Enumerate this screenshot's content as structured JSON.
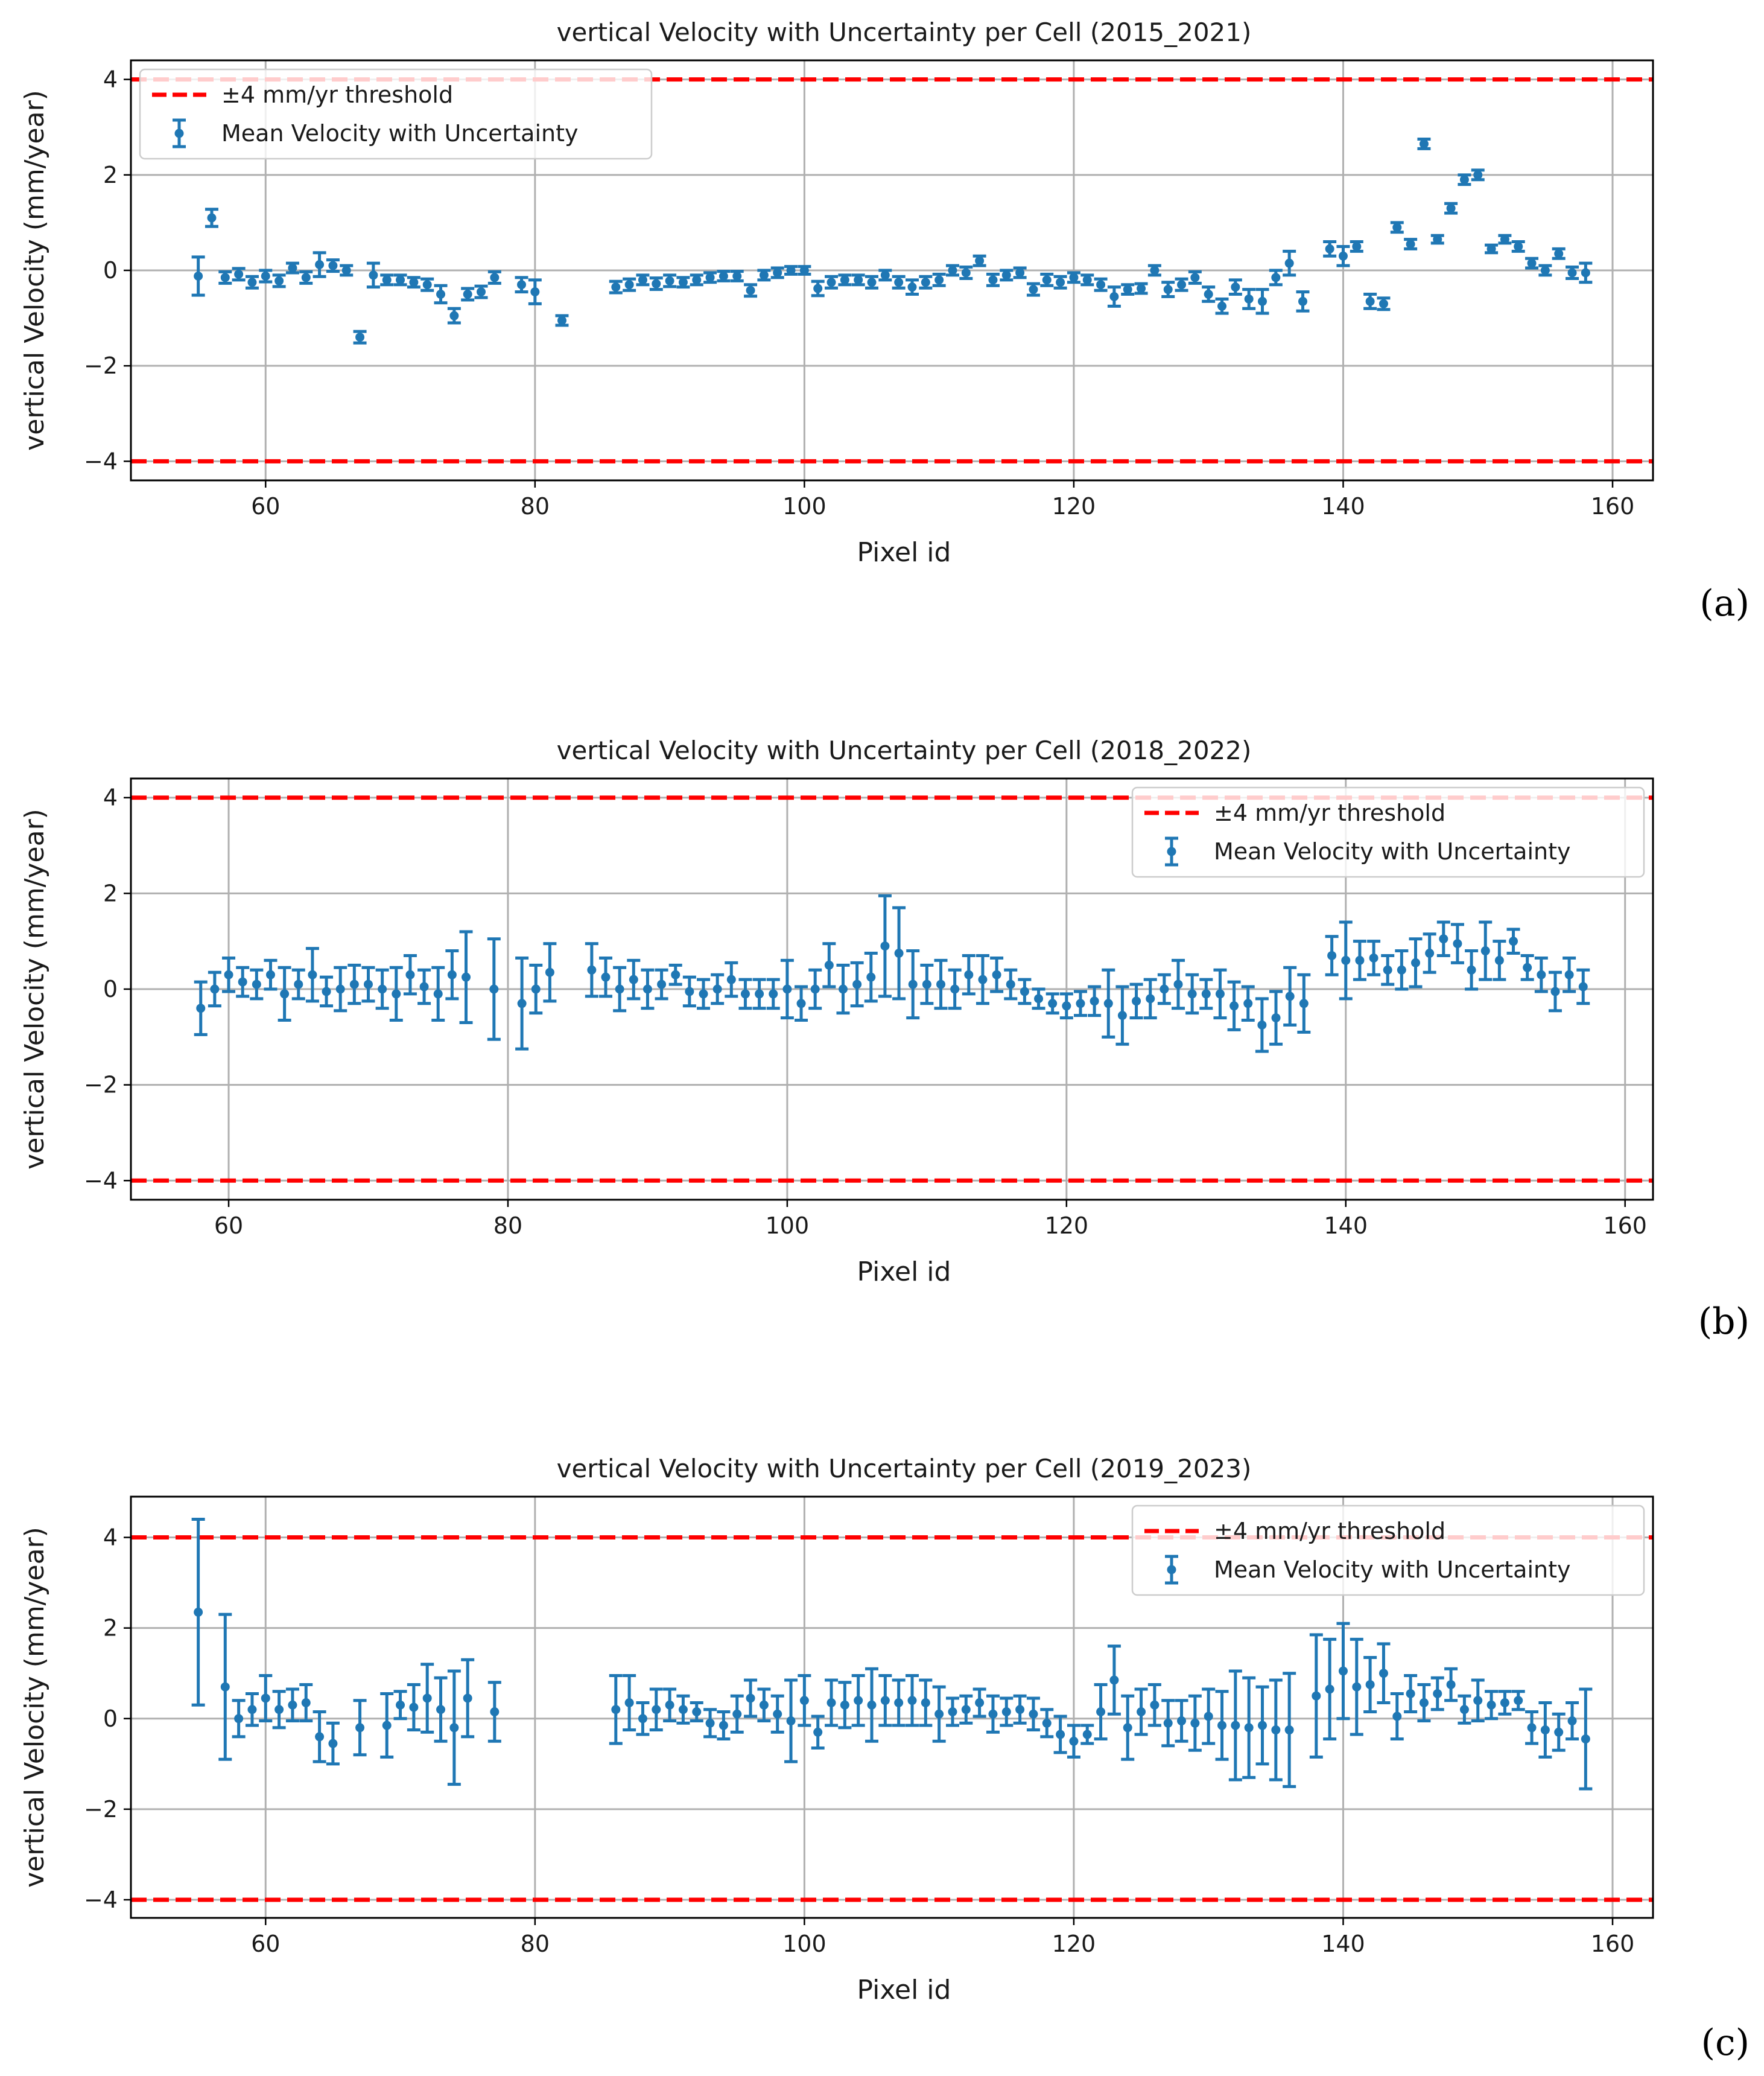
{
  "colors": {
    "series": "#1f77b4",
    "threshold": "#ff0000",
    "grid": "#b0b0b0",
    "axis": "#000000"
  },
  "chart_data": [
    {
      "type": "scatter",
      "panel_label": "(a)",
      "title": "vertical Velocity with Uncertainty per Cell (2015_2021)",
      "xlabel": "Pixel id",
      "ylabel": "vertical Velocity (mm/year)",
      "xlim": [
        50,
        163
      ],
      "ylim": [
        -4.4,
        4.4
      ],
      "xticks": [
        60,
        80,
        100,
        120,
        140,
        160
      ],
      "yticks": [
        -4,
        -2,
        0,
        2,
        4
      ],
      "grid": true,
      "legend_position": "top-left",
      "legend": {
        "threshold": "±4 mm/yr threshold",
        "series": "Mean Velocity with Uncertainty"
      },
      "thresholds": [
        4,
        -4
      ],
      "series": [
        {
          "name": "Mean Velocity with Uncertainty",
          "x": [
            55,
            56,
            57,
            58,
            59,
            60,
            61,
            62,
            63,
            64,
            65,
            66,
            67,
            68,
            69,
            70,
            71,
            72,
            73,
            74,
            75,
            76,
            77,
            79,
            80,
            82,
            86,
            87,
            88,
            89,
            90,
            91,
            92,
            93,
            94,
            95,
            96,
            97,
            98,
            99,
            100,
            101,
            102,
            103,
            104,
            105,
            106,
            107,
            108,
            109,
            110,
            111,
            112,
            113,
            114,
            115,
            116,
            117,
            118,
            119,
            120,
            121,
            122,
            123,
            124,
            125,
            126,
            127,
            128,
            129,
            130,
            131,
            132,
            133,
            134,
            135,
            136,
            137,
            139,
            140,
            141,
            142,
            143,
            144,
            145,
            146,
            147,
            148,
            149,
            150,
            151,
            152,
            153,
            154,
            155,
            156,
            157,
            158
          ],
          "y": [
            -0.12,
            1.1,
            -0.15,
            -0.08,
            -0.25,
            -0.12,
            -0.22,
            0.05,
            -0.15,
            0.12,
            0.1,
            0.0,
            -1.4,
            -0.1,
            -0.2,
            -0.2,
            -0.25,
            -0.3,
            -0.5,
            -0.95,
            -0.5,
            -0.45,
            -0.15,
            -0.3,
            -0.45,
            -1.05,
            -0.35,
            -0.3,
            -0.2,
            -0.28,
            -0.22,
            -0.25,
            -0.2,
            -0.15,
            -0.12,
            -0.12,
            -0.42,
            -0.1,
            -0.05,
            0.0,
            0.0,
            -0.38,
            -0.25,
            -0.2,
            -0.2,
            -0.25,
            -0.1,
            -0.25,
            -0.35,
            -0.25,
            -0.2,
            0.0,
            -0.05,
            0.2,
            -0.2,
            -0.1,
            -0.05,
            -0.4,
            -0.2,
            -0.25,
            -0.15,
            -0.2,
            -0.3,
            -0.55,
            -0.4,
            -0.38,
            0.0,
            -0.4,
            -0.3,
            -0.15,
            -0.5,
            -0.75,
            -0.35,
            -0.6,
            -0.65,
            -0.15,
            0.15,
            -0.65,
            0.45,
            0.3,
            0.5,
            -0.65,
            -0.7,
            0.9,
            0.55,
            2.65,
            0.65,
            1.3,
            1.9,
            2.0,
            0.45,
            0.65,
            0.5,
            0.15,
            0.0,
            0.35,
            -0.05,
            -0.05
          ],
          "err": [
            0.4,
            0.18,
            0.12,
            0.12,
            0.12,
            0.12,
            0.12,
            0.1,
            0.12,
            0.25,
            0.12,
            0.1,
            0.12,
            0.25,
            0.1,
            0.1,
            0.1,
            0.12,
            0.18,
            0.15,
            0.12,
            0.12,
            0.12,
            0.15,
            0.25,
            0.1,
            0.12,
            0.12,
            0.1,
            0.12,
            0.12,
            0.1,
            0.1,
            0.1,
            0.1,
            0.1,
            0.12,
            0.1,
            0.1,
            0.08,
            0.08,
            0.15,
            0.12,
            0.1,
            0.1,
            0.12,
            0.1,
            0.12,
            0.15,
            0.12,
            0.12,
            0.1,
            0.12,
            0.1,
            0.12,
            0.1,
            0.1,
            0.12,
            0.12,
            0.12,
            0.1,
            0.1,
            0.12,
            0.2,
            0.1,
            0.1,
            0.1,
            0.15,
            0.12,
            0.12,
            0.15,
            0.15,
            0.15,
            0.2,
            0.25,
            0.15,
            0.25,
            0.2,
            0.15,
            0.2,
            0.1,
            0.15,
            0.12,
            0.1,
            0.1,
            0.1,
            0.08,
            0.1,
            0.1,
            0.1,
            0.08,
            0.08,
            0.1,
            0.1,
            0.1,
            0.1,
            0.12,
            0.2
          ]
        }
      ]
    },
    {
      "type": "scatter",
      "panel_label": "(b)",
      "title": "vertical Velocity with Uncertainty per Cell (2018_2022)",
      "xlabel": "Pixel id",
      "ylabel": "vertical Velocity (mm/year)",
      "xlim": [
        53,
        162
      ],
      "ylim": [
        -4.4,
        4.4
      ],
      "xticks": [
        60,
        80,
        100,
        120,
        140,
        160
      ],
      "yticks": [
        -4,
        -2,
        0,
        2,
        4
      ],
      "grid": true,
      "legend_position": "top-right",
      "legend": {
        "threshold": "±4 mm/yr threshold",
        "series": "Mean Velocity with Uncertainty"
      },
      "thresholds": [
        4,
        -4
      ],
      "series": [
        {
          "name": "Mean Velocity with Uncertainty",
          "x": [
            58,
            59,
            60,
            61,
            62,
            63,
            64,
            65,
            66,
            67,
            68,
            69,
            70,
            71,
            72,
            73,
            74,
            75,
            76,
            77,
            79,
            81,
            82,
            83,
            86,
            87,
            88,
            89,
            90,
            91,
            92,
            93,
            94,
            95,
            96,
            97,
            98,
            99,
            100,
            101,
            102,
            103,
            104,
            105,
            106,
            107,
            108,
            109,
            110,
            111,
            112,
            113,
            114,
            115,
            116,
            117,
            118,
            119,
            120,
            121,
            122,
            123,
            124,
            125,
            126,
            127,
            128,
            129,
            130,
            131,
            132,
            133,
            134,
            135,
            136,
            137,
            139,
            140,
            141,
            142,
            143,
            144,
            145,
            146,
            147,
            148,
            149,
            150,
            151,
            152,
            153,
            154,
            155,
            156,
            157
          ],
          "y": [
            -0.4,
            0.0,
            0.3,
            0.15,
            0.1,
            0.3,
            -0.1,
            0.1,
            0.3,
            -0.05,
            0.0,
            0.1,
            0.1,
            0.0,
            -0.1,
            0.3,
            0.05,
            -0.1,
            0.3,
            0.25,
            0.0,
            -0.3,
            0.0,
            0.35,
            0.4,
            0.25,
            0.0,
            0.2,
            0.0,
            0.1,
            0.3,
            -0.05,
            -0.1,
            0.0,
            0.2,
            -0.1,
            -0.1,
            -0.1,
            0.0,
            -0.3,
            0.0,
            0.5,
            0.0,
            0.1,
            0.25,
            0.9,
            0.75,
            0.1,
            0.1,
            0.1,
            0.0,
            0.3,
            0.2,
            0.3,
            0.1,
            -0.05,
            -0.2,
            -0.3,
            -0.35,
            -0.3,
            -0.25,
            -0.3,
            -0.55,
            -0.25,
            -0.2,
            0.0,
            0.1,
            -0.1,
            -0.1,
            -0.1,
            -0.35,
            -0.3,
            -0.75,
            -0.6,
            -0.15,
            -0.3,
            0.7,
            0.6,
            0.6,
            0.65,
            0.4,
            0.4,
            0.55,
            0.75,
            1.05,
            0.95,
            0.4,
            0.8,
            0.6,
            1.0,
            0.45,
            0.3,
            -0.05,
            0.3,
            0.05
          ],
          "err": [
            0.55,
            0.35,
            0.35,
            0.3,
            0.3,
            0.3,
            0.55,
            0.3,
            0.55,
            0.3,
            0.45,
            0.4,
            0.35,
            0.4,
            0.55,
            0.4,
            0.35,
            0.55,
            0.5,
            0.95,
            1.05,
            0.95,
            0.5,
            0.6,
            0.55,
            0.4,
            0.45,
            0.4,
            0.4,
            0.3,
            0.2,
            0.3,
            0.3,
            0.3,
            0.35,
            0.3,
            0.3,
            0.3,
            0.6,
            0.35,
            0.4,
            0.45,
            0.5,
            0.45,
            0.5,
            1.05,
            0.95,
            0.7,
            0.4,
            0.5,
            0.4,
            0.4,
            0.5,
            0.35,
            0.3,
            0.25,
            0.2,
            0.2,
            0.25,
            0.25,
            0.3,
            0.7,
            0.6,
            0.35,
            0.4,
            0.3,
            0.5,
            0.4,
            0.3,
            0.5,
            0.5,
            0.35,
            0.55,
            0.55,
            0.6,
            0.6,
            0.4,
            0.8,
            0.4,
            0.35,
            0.3,
            0.4,
            0.5,
            0.4,
            0.35,
            0.4,
            0.4,
            0.6,
            0.4,
            0.25,
            0.25,
            0.35,
            0.4,
            0.35,
            0.35
          ]
        }
      ]
    },
    {
      "type": "scatter",
      "panel_label": "(c)",
      "title": "vertical Velocity with Uncertainty per Cell (2019_2023)",
      "xlabel": "Pixel id",
      "ylabel": "vertical Velocity (mm/year)",
      "xlim": [
        50,
        163
      ],
      "ylim": [
        -4.4,
        4.9
      ],
      "xticks": [
        60,
        80,
        100,
        120,
        140,
        160
      ],
      "yticks": [
        -4,
        -2,
        0,
        2,
        4
      ],
      "grid": true,
      "legend_position": "top-right",
      "legend": {
        "threshold": "±4 mm/yr threshold",
        "series": "Mean Velocity with Uncertainty"
      },
      "thresholds": [
        4,
        -4
      ],
      "series": [
        {
          "name": "Mean Velocity with Uncertainty",
          "x": [
            55,
            57,
            58,
            59,
            60,
            61,
            62,
            63,
            64,
            65,
            67,
            69,
            70,
            71,
            72,
            73,
            74,
            75,
            77,
            86,
            87,
            88,
            89,
            90,
            91,
            92,
            93,
            94,
            95,
            96,
            97,
            98,
            99,
            100,
            101,
            102,
            103,
            104,
            105,
            106,
            107,
            108,
            109,
            110,
            111,
            112,
            113,
            114,
            115,
            116,
            117,
            118,
            119,
            120,
            121,
            122,
            123,
            124,
            125,
            126,
            127,
            128,
            129,
            130,
            131,
            132,
            133,
            134,
            135,
            136,
            138,
            139,
            140,
            141,
            142,
            143,
            144,
            145,
            146,
            147,
            148,
            149,
            150,
            151,
            152,
            153,
            154,
            155,
            156,
            157,
            158
          ],
          "y": [
            2.35,
            0.7,
            0.0,
            0.2,
            0.45,
            0.2,
            0.3,
            0.35,
            -0.4,
            -0.55,
            -0.2,
            -0.15,
            0.3,
            0.25,
            0.45,
            0.2,
            -0.2,
            0.45,
            0.15,
            0.2,
            0.35,
            0.0,
            0.2,
            0.3,
            0.2,
            0.15,
            -0.1,
            -0.15,
            0.1,
            0.45,
            0.3,
            0.1,
            -0.05,
            0.4,
            -0.3,
            0.35,
            0.3,
            0.4,
            0.3,
            0.4,
            0.35,
            0.4,
            0.35,
            0.1,
            0.15,
            0.2,
            0.35,
            0.1,
            0.15,
            0.2,
            0.1,
            -0.1,
            -0.35,
            -0.5,
            -0.35,
            0.15,
            0.85,
            -0.2,
            0.15,
            0.3,
            -0.1,
            -0.05,
            -0.1,
            0.05,
            -0.15,
            -0.15,
            -0.2,
            -0.15,
            -0.25,
            -0.25,
            0.5,
            0.65,
            1.05,
            0.7,
            0.75,
            1.0,
            0.05,
            0.55,
            0.35,
            0.55,
            0.75,
            0.2,
            0.4,
            0.3,
            0.35,
            0.4,
            -0.2,
            -0.25,
            -0.3,
            -0.05,
            -0.45
          ],
          "err": [
            2.05,
            1.6,
            0.4,
            0.35,
            0.5,
            0.4,
            0.35,
            0.4,
            0.55,
            0.45,
            0.6,
            0.7,
            0.3,
            0.5,
            0.75,
            0.7,
            1.25,
            0.85,
            0.65,
            0.75,
            0.6,
            0.35,
            0.45,
            0.35,
            0.3,
            0.2,
            0.3,
            0.3,
            0.4,
            0.4,
            0.35,
            0.4,
            0.9,
            0.55,
            0.35,
            0.5,
            0.5,
            0.55,
            0.8,
            0.55,
            0.5,
            0.55,
            0.5,
            0.6,
            0.3,
            0.3,
            0.3,
            0.4,
            0.3,
            0.3,
            0.35,
            0.3,
            0.4,
            0.35,
            0.2,
            0.6,
            0.75,
            0.7,
            0.5,
            0.45,
            0.5,
            0.45,
            0.6,
            0.6,
            0.75,
            1.2,
            1.1,
            0.85,
            1.1,
            1.25,
            1.35,
            1.1,
            1.05,
            1.05,
            0.6,
            0.65,
            0.5,
            0.4,
            0.4,
            0.35,
            0.35,
            0.3,
            0.45,
            0.3,
            0.25,
            0.2,
            0.35,
            0.6,
            0.4,
            0.4,
            1.1
          ]
        }
      ]
    }
  ]
}
